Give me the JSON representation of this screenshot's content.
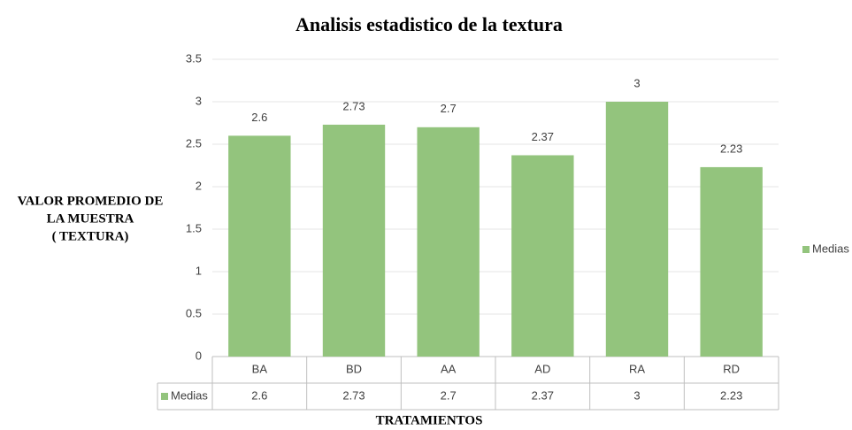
{
  "chart_data": {
    "type": "bar",
    "title": "Analisis estadistico de la textura",
    "ylabel": [
      "VALOR PROMEDIO DE",
      "LA MUESTRA",
      "( TEXTURA)"
    ],
    "xlabel": "TRATAMIENTOS",
    "categories": [
      "BA",
      "BD",
      "AA",
      "AD",
      "RA",
      "RD"
    ],
    "series": [
      {
        "name": "Medias",
        "color": "#93c47d",
        "values": [
          2.6,
          2.73,
          2.7,
          2.37,
          3,
          2.23
        ]
      }
    ],
    "ylim": [
      0,
      3.5
    ],
    "yticks": [
      0,
      0.5,
      1,
      1.5,
      2,
      2.5,
      3,
      3.5
    ],
    "grid": true,
    "legend": "right",
    "data_table": true
  }
}
